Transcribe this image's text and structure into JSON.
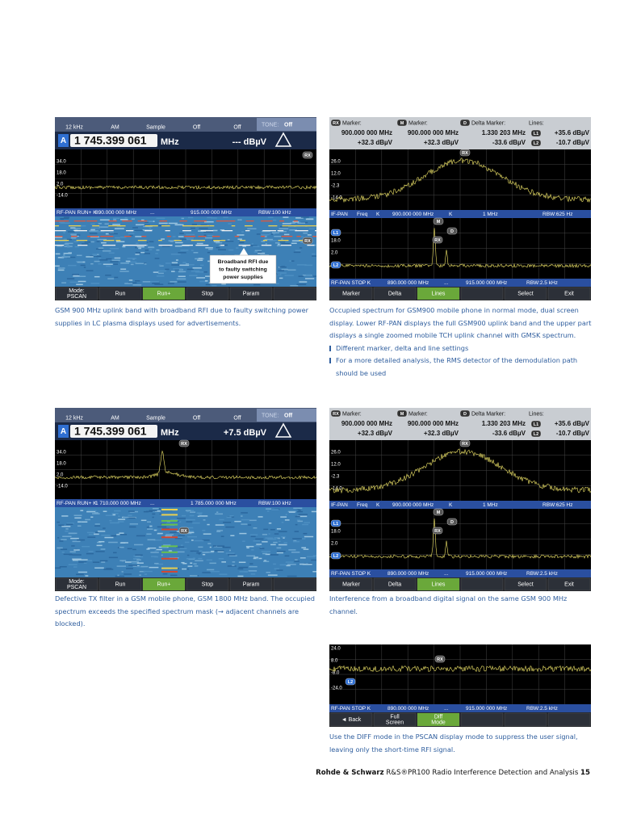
{
  "screens": [
    {
      "kind": "pscan",
      "settings": [
        "12 kHz",
        "AM",
        "Sample",
        "Off",
        "Off"
      ],
      "tone_label": "TONE:",
      "tone": "Off",
      "channel": "A",
      "frequency": "1 745.399 061",
      "unit": "MHz",
      "level": "--- dBµV",
      "yticks": [
        "34.0",
        "18.0",
        "2.0",
        "-14.0"
      ],
      "pan": [
        "RF-PAN RUN+ K",
        "890.000 000 MHz",
        "...",
        "915.000 000 MHz",
        "RBW:100 kHz"
      ],
      "markers": [
        "RX",
        "RX"
      ],
      "callout": [
        "Broadband RFI due",
        "to faulty switching",
        "power supplies"
      ],
      "softkeys": [
        [
          "Mode:",
          "PSCAN"
        ],
        [
          "Run"
        ],
        [
          "Run+"
        ],
        [
          "Stop"
        ],
        [
          "Param"
        ]
      ],
      "active_key": 2
    },
    {
      "kind": "marker",
      "markers": [
        {
          "tag": "RX",
          "label": "Marker:",
          "freq": "900.000 000 MHz",
          "level": "+32.3 dBµV"
        },
        {
          "tag": "M",
          "label": "Marker:",
          "freq": "900.000 000 MHz",
          "level": "+32.3 dBµV"
        },
        {
          "tag": "D",
          "label": "Delta Marker:",
          "freq": "1.330 203 MHz",
          "level": "-33.6 dBµV"
        }
      ],
      "lines": {
        "label": "Lines:",
        "items": [
          {
            "tag": "L1",
            "value": "+35.6 dBµV"
          },
          {
            "tag": "L2",
            "value": "-10.7 dBµV"
          }
        ]
      },
      "yticks": [
        "26.0",
        "12.0",
        "-2.3",
        "-14.0"
      ],
      "if_bar": [
        "IF-PAN",
        "Freq",
        "K",
        "900.000 000 MHz",
        "K",
        "1 MHz",
        "RBW:625 Hz"
      ],
      "lower_yticks": [
        "18.0",
        "2.0"
      ],
      "rf_bar": [
        "RF-PAN STOP K",
        "890.000 000 MHz",
        "...",
        "915.000 000 MHz",
        "RBW:2.5 kHz"
      ],
      "softkeys": [
        [
          "Marker"
        ],
        [
          "Delta"
        ],
        [
          "Lines"
        ],
        [
          "Select"
        ],
        [
          "Exit"
        ]
      ],
      "active_key": 2
    },
    {
      "kind": "pscan",
      "settings": [
        "12 kHz",
        "AM",
        "Sample",
        "Off",
        "Off"
      ],
      "tone_label": "TONE:",
      "tone": "Off",
      "channel": "A",
      "frequency": "1 745.399 061",
      "unit": "MHz",
      "level": "+7.5 dBµV",
      "yticks": [
        "34.0",
        "18.0",
        "2.0",
        "-14.0"
      ],
      "pan": [
        "RF-PAN RUN+ K",
        "1 710.000 000 MHz",
        "...",
        "1 785.000 000 MHz",
        "RBW:100 kHz"
      ],
      "markers": [
        "RX",
        "RX"
      ],
      "softkeys": [
        [
          "Mode:",
          "PSCAN"
        ],
        [
          "Run"
        ],
        [
          "Run+"
        ],
        [
          "Stop"
        ],
        [
          "Param"
        ]
      ],
      "active_key": 2
    },
    {
      "kind": "marker",
      "markers": [
        {
          "tag": "RX",
          "label": "Marker:",
          "freq": "900.000 000 MHz",
          "level": "+32.3 dBµV"
        },
        {
          "tag": "M",
          "label": "Marker:",
          "freq": "900.000 000 MHz",
          "level": "+32.3 dBµV"
        },
        {
          "tag": "D",
          "label": "Delta Marker:",
          "freq": "1.330 203 MHz",
          "level": "-33.6 dBµV"
        }
      ],
      "lines": {
        "label": "Lines:",
        "items": [
          {
            "tag": "L1",
            "value": "+35.6 dBµV"
          },
          {
            "tag": "L2",
            "value": "-10.7 dBµV"
          }
        ]
      },
      "yticks": [
        "26.0",
        "12.0",
        "-2.3",
        "-14.0"
      ],
      "if_bar": [
        "IF-PAN",
        "Freq",
        "K",
        "900.000 000 MHz",
        "K",
        "1 MHz",
        "RBW:625 Hz"
      ],
      "lower_yticks": [
        "18.0",
        "2.0"
      ],
      "rf_bar": [
        "RF-PAN STOP K",
        "890.000 000 MHz",
        "...",
        "915.000 000 MHz",
        "RBW:2.5 kHz"
      ],
      "softkeys": [
        [
          "Marker"
        ],
        [
          "Delta"
        ],
        [
          "Lines"
        ],
        [
          "Select"
        ],
        [
          "Exit"
        ]
      ],
      "active_key": 2
    },
    {
      "kind": "diff",
      "yticks": [
        "24.0",
        "8.0",
        "-8.0",
        "-24.0"
      ],
      "tags": [
        "RX",
        "L2"
      ],
      "rf_bar": [
        "RF-PAN STOP K",
        "890.000 000 MHz",
        "...",
        "915.000 000 MHz",
        "RBW:2.5 kHz"
      ],
      "softkeys": [
        [
          "◄ Back"
        ],
        [
          "Full",
          "Screen"
        ],
        [
          "Diff",
          "Mode"
        ]
      ],
      "active_key": 2
    }
  ],
  "captions": [
    {
      "text": "GSM 900 MHz uplink band with broadband RFI due to faulty switching power supplies in LC plasma displays used for advertisements."
    },
    {
      "text": "Occupied spectrum for GSM900 mobile phone in normal mode, dual screen display. Lower RF-PAN displays the full GSM900 uplink band and the upper part displays a single zoomed mobile TCH uplink channel with GMSK spectrum.",
      "bullets": [
        "Different marker, delta and line settings",
        "For a more detailed analysis, the RMS detector of the demodulation path should be used"
      ]
    },
    {
      "text": "Defective TX filter in a GSM mobile phone, GSM 1800 MHz band. The occupied spectrum exceeds the specified spectrum mask (→ adjacent channels are blocked)."
    },
    {
      "text": "Interference from a broadband digital signal on the same GSM 900 MHz channel."
    },
    {
      "text": "Use the DIFF mode in the PSCAN display mode to suppress the user signal, leaving only the short-time RFI signal."
    }
  ],
  "footer": {
    "brand": "Rohde & Schwarz",
    "title": "R&S®PR100 Radio Interference Detection and Analysis",
    "page": "15"
  }
}
